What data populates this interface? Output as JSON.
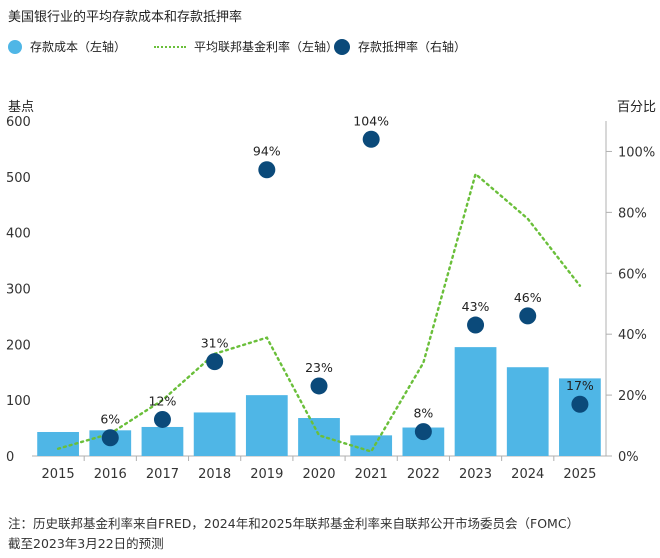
{
  "title": "美国银行业的平均存款成本和存款抵押率",
  "legend": {
    "bar": "存款成本（左轴）",
    "line": "平均联邦基金利率（左轴）",
    "dot": "存款抵押率（右轴）"
  },
  "left_axis_title": "基点",
  "right_axis_title": "百分比",
  "note_lines": [
    "注：历史联邦基金利率来自FRED，2024年和2025年联邦基金利率来自联邦公开市场委员会（FOMC）",
    "截至2023年3月22日的预测"
  ],
  "colors": {
    "bar": "#4fb6e6",
    "line": "#6abf3a",
    "dot": "#0b4a7a",
    "axis": "#b0b0b0"
  },
  "chart_data": {
    "type": "bar",
    "categories": [
      "2015",
      "2016",
      "2017",
      "2018",
      "2019",
      "2020",
      "2021",
      "2022",
      "2023",
      "2024",
      "2025"
    ],
    "ylim_left": [
      0,
      600
    ],
    "ylim_right": [
      0,
      110
    ],
    "left_ticks": [
      0,
      100,
      200,
      300,
      400,
      500,
      600
    ],
    "right_ticks": [
      0,
      20,
      40,
      60,
      80,
      100
    ],
    "right_tick_labels": [
      "0%",
      "20%",
      "40%",
      "60%",
      "80%",
      "100%"
    ],
    "series": [
      {
        "name": "存款成本（左轴）",
        "type": "bar",
        "axis": "left",
        "values": [
          43,
          46,
          52,
          78,
          109,
          68,
          37,
          51,
          195,
          159,
          139
        ]
      },
      {
        "name": "平均联邦基金利率（左轴）",
        "type": "line",
        "axis": "left",
        "values": [
          13,
          40,
          100,
          183,
          212,
          37,
          8,
          167,
          505,
          425,
          305
        ]
      },
      {
        "name": "存款抵押率（右轴）",
        "type": "scatter",
        "axis": "right",
        "values": [
          null,
          6,
          12,
          31,
          94,
          23,
          104,
          8,
          43,
          46,
          17
        ],
        "labels": [
          "",
          "6%",
          "12%",
          "31%",
          "94%",
          "23%",
          "104%",
          "8%",
          "43%",
          "46%",
          "17%"
        ]
      }
    ]
  }
}
